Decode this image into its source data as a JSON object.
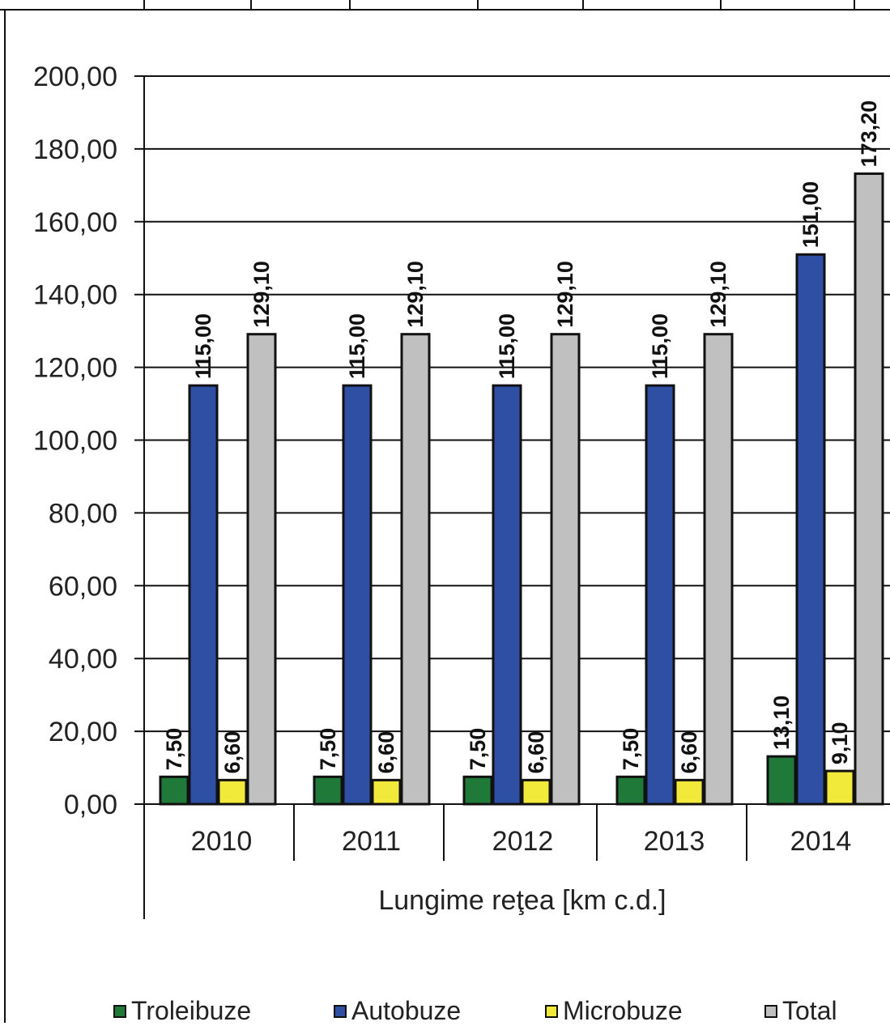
{
  "chart_data": {
    "type": "bar",
    "categories": [
      "2010",
      "2011",
      "2012",
      "2013",
      "2014"
    ],
    "category_group_label": "Lungime reţea [km c.d.]",
    "y_tick_labels": [
      "0,00",
      "20,00",
      "40,00",
      "60,00",
      "80,00",
      "100,00",
      "120,00",
      "140,00",
      "160,00",
      "180,00",
      "200,00"
    ],
    "ylim": [
      0,
      200
    ],
    "grid": true,
    "legend_position": "bottom",
    "series": [
      {
        "name": "Troleibuze",
        "color": "#1f7a3a",
        "values": [
          7.5,
          7.5,
          7.5,
          7.5,
          13.1
        ],
        "labels": [
          "7,50",
          "7,50",
          "7,50",
          "7,50",
          "13,10"
        ]
      },
      {
        "name": "Autobuze",
        "color": "#2e4fa3",
        "values": [
          115.0,
          115.0,
          115.0,
          115.0,
          151.0
        ],
        "labels": [
          "115,00",
          "115,00",
          "115,00",
          "115,00",
          "151,00"
        ]
      },
      {
        "name": "Microbuze",
        "color": "#f2ea3a",
        "values": [
          6.6,
          6.6,
          6.6,
          6.6,
          9.1
        ],
        "labels": [
          "6,60",
          "6,60",
          "6,60",
          "6,60",
          "9,10"
        ]
      },
      {
        "name": "Total",
        "color": "#c0c0c0",
        "values": [
          129.1,
          129.1,
          129.1,
          129.1,
          173.2
        ],
        "labels": [
          "129,10",
          "129,10",
          "129,10",
          "129,10",
          "173,20"
        ]
      }
    ]
  }
}
